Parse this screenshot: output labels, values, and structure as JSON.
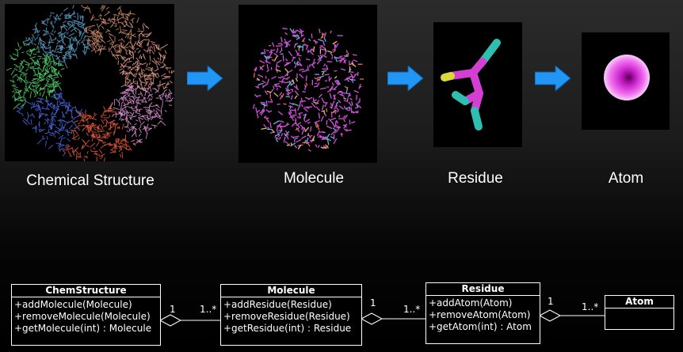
{
  "pipeline": {
    "stages": [
      {
        "label": "Chemical Structure"
      },
      {
        "label": "Molecule"
      },
      {
        "label": "Residue"
      },
      {
        "label": "Atom"
      }
    ]
  },
  "uml": {
    "classes": [
      {
        "name": "ChemStructure",
        "methods": [
          "+addMolecule(Molecule)",
          "+removeMolecule(Molecule)",
          "+getMolecule(int) : Molecule"
        ]
      },
      {
        "name": "Molecule",
        "methods": [
          "+addResidue(Residue)",
          "+removeResidue(Residue)",
          "+getResidue(int) : Residue"
        ]
      },
      {
        "name": "Residue",
        "methods": [
          "+addAtom(Atom)",
          "+removeAtom(Atom)",
          "+getAtom(int) : Atom"
        ]
      },
      {
        "name": "Atom",
        "methods": []
      }
    ],
    "associations": [
      {
        "from_mult": "1",
        "to_mult": "1..*"
      },
      {
        "from_mult": "1",
        "to_mult": "1..*"
      },
      {
        "from_mult": "1",
        "to_mult": "1..*"
      }
    ]
  },
  "colors": {
    "arrow_fill": "#2196f3",
    "atom_color": "#e040e0",
    "line_color": "#ffffff"
  }
}
